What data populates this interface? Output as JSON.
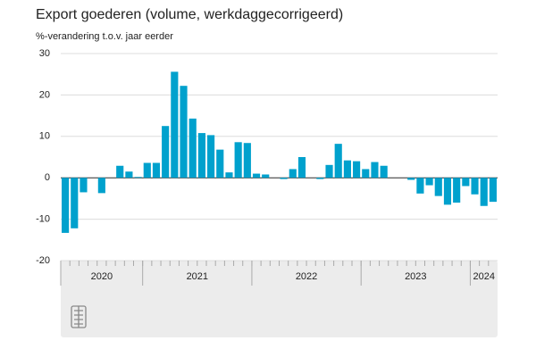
{
  "chart_data": {
    "type": "bar",
    "title": "Export goederen (volume, werkdaggecorrigeerd)",
    "subtitle": "%-verandering t.o.v. jaar eerder",
    "color": "#00a1cd",
    "values": [
      -13.3,
      -12.2,
      -3.5,
      0,
      -3.7,
      0,
      2.9,
      1.5,
      0.2,
      3.6,
      3.6,
      12.5,
      25.6,
      22.2,
      14.3,
      10.8,
      10.3,
      6.8,
      1.3,
      8.6,
      8.4,
      1.0,
      0.8,
      0,
      -0.3,
      2.1,
      5.0,
      0,
      -0.3,
      3.1,
      8.2,
      4.2,
      4.0,
      2.1,
      3.8,
      2.9,
      0,
      0,
      -0.5,
      -3.8,
      -1.8,
      -4.4,
      -6.5,
      -6.0,
      -2.0,
      -4.0,
      -6.8,
      -5.8
    ],
    "groups": [
      {
        "label": "2020",
        "months": 9
      },
      {
        "label": "2021",
        "months": 12
      },
      {
        "label": "2022",
        "months": 12
      },
      {
        "label": "2023",
        "months": 12
      },
      {
        "label": "2024",
        "months": 3
      }
    ],
    "ylim": [
      -20,
      30
    ],
    "yticks": [
      -20,
      -10,
      0,
      10,
      20,
      30
    ],
    "grid": true
  }
}
